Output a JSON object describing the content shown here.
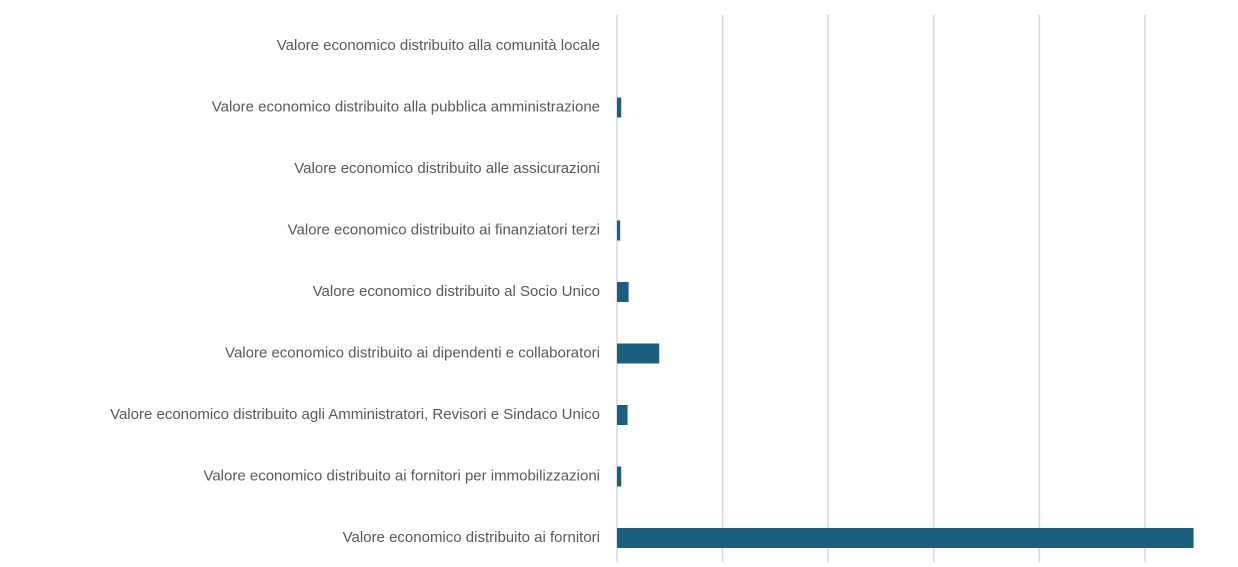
{
  "chart_data": {
    "type": "barh",
    "categories": [
      "Valore economico distribuito alla comunità locale",
      "Valore economico distribuito alla pubblica amministrazione",
      "Valore economico distribuito alle assicurazioni",
      "Valore economico distribuito ai finanziatori terzi",
      "Valore economico distribuito al Socio Unico",
      "Valore economico distribuito ai dipendenti e collaboratori",
      "Valore economico distribuito agli Amministratori, Revisori e Sindaco Unico",
      "Valore economico distribuito ai fornitori per immobilizzazioni",
      "Valore economico distribuito ai fornitori"
    ],
    "values": [
      0,
      0.04,
      0,
      0.03,
      0.11,
      0.4,
      0.1,
      0.04,
      5.46
    ],
    "color": "#1a5e80",
    "xlim": [
      0,
      5.5
    ],
    "xticks": [
      0,
      1,
      2,
      3,
      4,
      5
    ],
    "xtick_labels": false,
    "grid": true
  }
}
